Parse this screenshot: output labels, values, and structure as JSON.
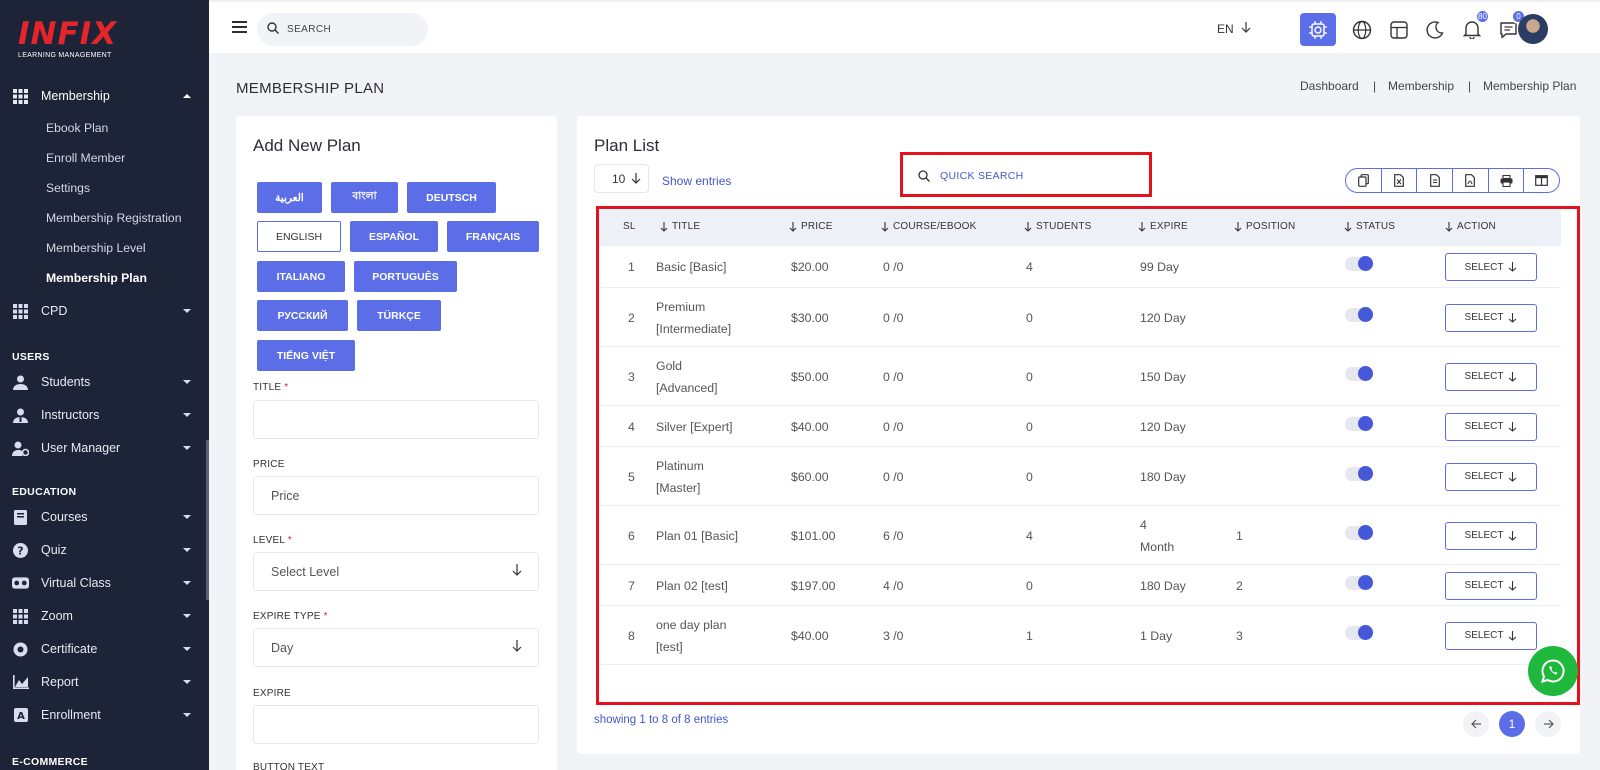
{
  "brand": {
    "logo_text": "INFIX",
    "logo_sub": "LEARNING MANAGEMENT"
  },
  "sidebar": {
    "membership": {
      "label": "Membership",
      "sub": [
        "Ebook Plan",
        "Enroll Member",
        "Settings",
        "Membership Registration",
        "Membership Level",
        "Membership Plan"
      ]
    },
    "cpd": "CPD",
    "sections": {
      "users": "USERS",
      "education": "EDUCATION",
      "ecommerce": "E-COMMERCE"
    },
    "users_items": [
      "Students",
      "Instructors",
      "User Manager"
    ],
    "education_items": [
      "Courses",
      "Quiz",
      "Virtual Class",
      "Zoom",
      "Certificate",
      "Report",
      "Enrollment"
    ]
  },
  "header": {
    "search_placeholder": "SEARCH",
    "lang": "EN",
    "notif_count": "80",
    "msg_count": "0"
  },
  "page": {
    "title": "MEMBERSHIP PLAN",
    "breadcrumb": [
      "Dashboard",
      "Membership",
      "Membership Plan"
    ],
    "sep": "|"
  },
  "form": {
    "title": "Add New Plan",
    "languages": [
      "العربية",
      "বাংলা",
      "DEUTSCH",
      "ENGLISH",
      "ESPAÑOL",
      "FRANÇAIS",
      "ITALIANO",
      "PORTUGUÊS",
      "РУССКИЙ",
      "TÜRKÇE",
      "TIẾNG VIỆT"
    ],
    "title_label": "TITLE",
    "price_label": "PRICE",
    "price_placeholder": "Price",
    "level_label": "LEVEL",
    "level_value": "Select Level",
    "expire_type_label": "EXPIRE TYPE",
    "expire_type_value": "Day",
    "expire_label": "EXPIRE",
    "button_text_label": "BUTTON TEXT",
    "required_mark": "*"
  },
  "list": {
    "title": "Plan List",
    "entries": "10",
    "show_entries": "Show entries",
    "quick_search": "QUICK SEARCH",
    "columns": [
      "SL",
      "TITLE",
      "PRICE",
      "COURSE/EBOOK",
      "STUDENTS",
      "EXPIRE",
      "POSITION",
      "STATUS",
      "ACTION"
    ],
    "rows": [
      {
        "sl": "1",
        "title": [
          "Basic [Basic]"
        ],
        "price": "$20.00",
        "course": "0 /0",
        "students": "4",
        "expire": [
          "99 Day"
        ],
        "position": ""
      },
      {
        "sl": "2",
        "title": [
          "Premium",
          "[Intermediate]"
        ],
        "price": "$30.00",
        "course": "0 /0",
        "students": "0",
        "expire": [
          "120 Day"
        ],
        "position": ""
      },
      {
        "sl": "3",
        "title": [
          "Gold",
          "[Advanced]"
        ],
        "price": "$50.00",
        "course": "0 /0",
        "students": "0",
        "expire": [
          "150 Day"
        ],
        "position": ""
      },
      {
        "sl": "4",
        "title": [
          "Silver [Expert]"
        ],
        "price": "$40.00",
        "course": "0 /0",
        "students": "0",
        "expire": [
          "120 Day"
        ],
        "position": ""
      },
      {
        "sl": "5",
        "title": [
          "Platinum",
          "[Master]"
        ],
        "price": "$60.00",
        "course": "0 /0",
        "students": "0",
        "expire": [
          "180 Day"
        ],
        "position": ""
      },
      {
        "sl": "6",
        "title": [
          "Plan 01 [Basic]"
        ],
        "price": "$101.00",
        "course": "6 /0",
        "students": "4",
        "expire": [
          "4",
          "Month"
        ],
        "position": "1"
      },
      {
        "sl": "7",
        "title": [
          "Plan 02 [test]"
        ],
        "price": "$197.00",
        "course": "4 /0",
        "students": "0",
        "expire": [
          "180 Day"
        ],
        "position": "2"
      },
      {
        "sl": "8",
        "title": [
          "one day plan",
          "[test]"
        ],
        "price": "$40.00",
        "course": "3 /0",
        "students": "1",
        "expire": [
          "1 Day"
        ],
        "position": "3"
      }
    ],
    "select_label": "SELECT",
    "showing": "showing 1 to 8 of 8 entries",
    "page": "1"
  },
  "colors": {
    "accent": "#5b6ee8",
    "sidebar": "#1d2437",
    "highlight": "#e5111c",
    "whatsapp": "#1fb83d"
  }
}
